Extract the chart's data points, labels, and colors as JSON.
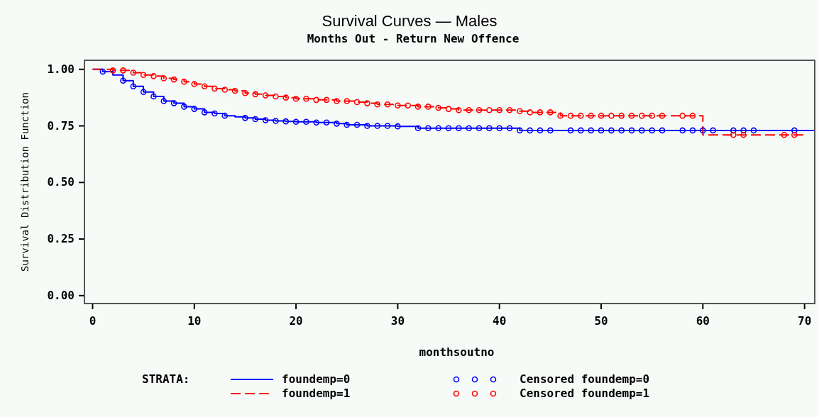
{
  "chart_data": {
    "type": "step",
    "title": "Survival Curves — Males",
    "subtitle": "Months Out - Return New Offence",
    "xlabel": "monthsoutno",
    "ylabel": "Survival Distribution Function",
    "legend_title": "STRATA:",
    "legend": "bottom",
    "grid": false,
    "xlim": [
      -0.8,
      71
    ],
    "ylim": [
      -0.035,
      1.04
    ],
    "xticks": [
      0,
      10,
      20,
      30,
      40,
      50,
      60,
      70
    ],
    "yticks": [
      {
        "value": 0,
        "label": "0.00"
      },
      {
        "value": 0.25,
        "label": "0.25"
      },
      {
        "value": 0.5,
        "label": "0.50"
      },
      {
        "value": 0.75,
        "label": "0.75"
      },
      {
        "value": 1,
        "label": "1.00"
      }
    ],
    "series": [
      {
        "name": "foundemp=0",
        "color": "#0000ff",
        "line_style": "solid",
        "marker": "none",
        "x": [
          0,
          1,
          2,
          3,
          4,
          5,
          6,
          7,
          8,
          9,
          10,
          11,
          12,
          13,
          14,
          15,
          16,
          17,
          18,
          19,
          20,
          22,
          24,
          25,
          27,
          30,
          32,
          42,
          71
        ],
        "values": [
          1.0,
          0.99,
          0.975,
          0.95,
          0.925,
          0.9,
          0.88,
          0.86,
          0.85,
          0.835,
          0.825,
          0.81,
          0.805,
          0.795,
          0.79,
          0.785,
          0.78,
          0.775,
          0.772,
          0.77,
          0.768,
          0.765,
          0.76,
          0.755,
          0.75,
          0.748,
          0.74,
          0.73,
          0.73
        ]
      },
      {
        "name": "foundemp=1",
        "color": "#ff0000",
        "line_style": "dashed",
        "marker": "none",
        "x": [
          0,
          2,
          4,
          5,
          6,
          7,
          8,
          9,
          10,
          11,
          12,
          13,
          14,
          15,
          16,
          17,
          18,
          19,
          20,
          22,
          24,
          26,
          27,
          28,
          30,
          32,
          34,
          35,
          36,
          42,
          43,
          46,
          60,
          70
        ],
        "values": [
          1.0,
          0.995,
          0.985,
          0.975,
          0.97,
          0.96,
          0.955,
          0.945,
          0.935,
          0.925,
          0.915,
          0.91,
          0.905,
          0.895,
          0.89,
          0.885,
          0.88,
          0.875,
          0.87,
          0.865,
          0.86,
          0.855,
          0.85,
          0.845,
          0.84,
          0.835,
          0.83,
          0.825,
          0.82,
          0.815,
          0.81,
          0.795,
          0.71,
          0.71
        ]
      },
      {
        "name": "Censored foundemp=0",
        "type": "scatter",
        "color": "#0000ff",
        "marker": "circle",
        "x": [
          1,
          3,
          4,
          5,
          6,
          7,
          8,
          9,
          10,
          11,
          12,
          13,
          15,
          16,
          17,
          18,
          19,
          20,
          21,
          22,
          23,
          24,
          25,
          26,
          27,
          28,
          29,
          30,
          32,
          33,
          34,
          35,
          36,
          37,
          38,
          39,
          40,
          41,
          42,
          43,
          44,
          45,
          47,
          48,
          49,
          50,
          51,
          52,
          53,
          54,
          55,
          56,
          58,
          59,
          60,
          61,
          63,
          64,
          65,
          69
        ],
        "values": [
          0.99,
          0.95,
          0.925,
          0.9,
          0.88,
          0.86,
          0.85,
          0.835,
          0.825,
          0.81,
          0.805,
          0.795,
          0.785,
          0.78,
          0.775,
          0.772,
          0.77,
          0.768,
          0.768,
          0.765,
          0.765,
          0.76,
          0.755,
          0.755,
          0.75,
          0.75,
          0.75,
          0.748,
          0.74,
          0.74,
          0.74,
          0.74,
          0.74,
          0.74,
          0.74,
          0.74,
          0.74,
          0.74,
          0.73,
          0.73,
          0.73,
          0.73,
          0.73,
          0.73,
          0.73,
          0.73,
          0.73,
          0.73,
          0.73,
          0.73,
          0.73,
          0.73,
          0.73,
          0.73,
          0.73,
          0.73,
          0.73,
          0.73,
          0.73,
          0.73
        ]
      },
      {
        "name": "Censored foundemp=1",
        "type": "scatter",
        "color": "#ff0000",
        "marker": "circle",
        "x": [
          2,
          3,
          4,
          5,
          6,
          7,
          8,
          9,
          10,
          11,
          12,
          13,
          14,
          15,
          16,
          17,
          18,
          19,
          20,
          21,
          22,
          23,
          24,
          25,
          26,
          27,
          28,
          29,
          30,
          31,
          32,
          33,
          34,
          35,
          36,
          37,
          38,
          39,
          40,
          41,
          42,
          43,
          44,
          45,
          46,
          47,
          48,
          49,
          50,
          51,
          52,
          53,
          54,
          55,
          56,
          58,
          59,
          63,
          64,
          68,
          69
        ],
        "values": [
          0.995,
          0.995,
          0.985,
          0.975,
          0.97,
          0.96,
          0.955,
          0.945,
          0.935,
          0.925,
          0.915,
          0.91,
          0.905,
          0.895,
          0.89,
          0.885,
          0.88,
          0.875,
          0.87,
          0.87,
          0.865,
          0.865,
          0.86,
          0.86,
          0.855,
          0.85,
          0.845,
          0.845,
          0.84,
          0.84,
          0.835,
          0.835,
          0.83,
          0.825,
          0.82,
          0.82,
          0.82,
          0.82,
          0.82,
          0.82,
          0.815,
          0.81,
          0.81,
          0.81,
          0.795,
          0.795,
          0.795,
          0.795,
          0.795,
          0.795,
          0.795,
          0.795,
          0.795,
          0.795,
          0.795,
          0.795,
          0.795,
          0.71,
          0.71,
          0.71,
          0.71
        ]
      }
    ]
  }
}
